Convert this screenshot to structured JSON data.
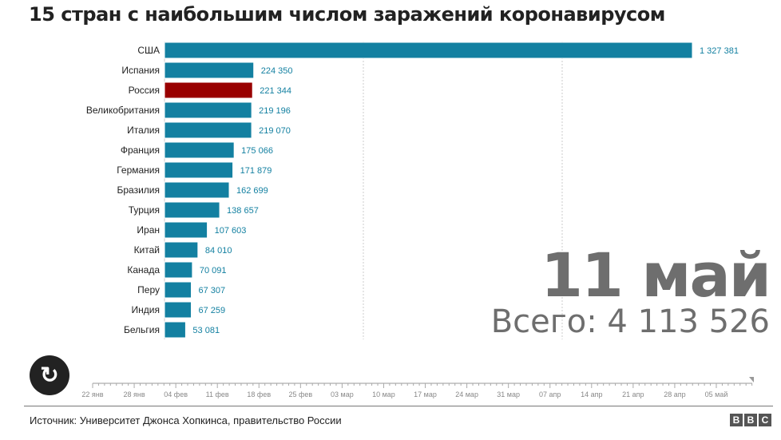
{
  "title": "15 стран с наибольшим числом заражений коронавирусом",
  "chart_data": {
    "type": "bar",
    "orientation": "horizontal",
    "title": "15 стран с наибольшим числом заражений коронавирусом",
    "categories": [
      "США",
      "Испания",
      "Россия",
      "Великобритания",
      "Италия",
      "Франция",
      "Германия",
      "Бразилия",
      "Турция",
      "Иран",
      "Китай",
      "Канада",
      "Перу",
      "Индия",
      "Бельгия"
    ],
    "values": [
      1327381,
      224350,
      221344,
      219196,
      219070,
      175066,
      171879,
      162699,
      138657,
      107603,
      84010,
      70091,
      67307,
      67259,
      53081
    ],
    "labels": [
      "1 327 381",
      "224 350",
      "221 344",
      "219 196",
      "219 070",
      "175 066",
      "171 879",
      "162 699",
      "138 657",
      "107 603",
      "84 010",
      "70 091",
      "67 307",
      "67 259",
      "53 081"
    ],
    "xlim": [
      0,
      1327381
    ],
    "gridlines": [
      500000,
      1000000
    ],
    "highlight": "Россия",
    "colors": {
      "bar": "#1380a1",
      "highlight": "#990000",
      "label": "#1380a1"
    }
  },
  "date_label": "11 май",
  "total_label": "Всего: 4 113 526",
  "timeline": {
    "ticks": [
      "22 янв",
      "28 янв",
      "04 фев",
      "11 фев",
      "18 фев",
      "25 фев",
      "03 мар",
      "10 мар",
      "17 мар",
      "24 мар",
      "31 мар",
      "07 апр",
      "14 апр",
      "21 апр",
      "28 апр",
      "05 май"
    ],
    "position": "11 май"
  },
  "replay_icon": "replay-icon",
  "source": "Источник: Университет Джонса Хопкинса, правительство России",
  "logo": [
    "B",
    "B",
    "C"
  ]
}
